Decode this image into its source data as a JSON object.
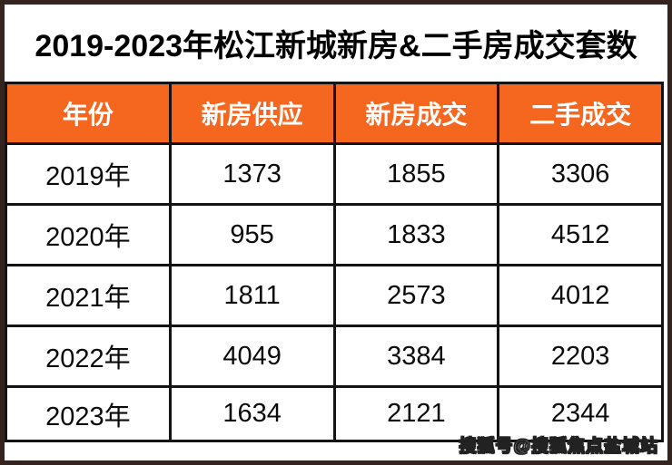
{
  "title": "2019-2023年松江新城新房&二手房成交套数",
  "watermark": "搜狐号@搜狐焦点盐城站",
  "colors": {
    "accent_orange": "#f5661e",
    "table_line": "#141414",
    "outer_frame": "#33241f",
    "header_text": "#ffffff",
    "body_text": "#0b0b0b"
  },
  "chart_data": {
    "type": "table",
    "title": "2019-2023年松江新城新房&二手房成交套数",
    "headers": [
      "年份",
      "新房供应",
      "新房成交",
      "二手成交"
    ],
    "categories": [
      "2019年",
      "2020年",
      "2021年",
      "2022年",
      "2023年"
    ],
    "series": [
      {
        "name": "新房供应",
        "values": [
          1373,
          955,
          1811,
          4049,
          1634
        ]
      },
      {
        "name": "新房成交",
        "values": [
          1855,
          1833,
          2573,
          3384,
          2121
        ]
      },
      {
        "name": "二手成交",
        "values": [
          3306,
          4512,
          4012,
          2203,
          2344
        ]
      }
    ],
    "rows": [
      [
        "2019年",
        "1373",
        "1855",
        "3306"
      ],
      [
        "2020年",
        "955",
        "1833",
        "4512"
      ],
      [
        "2021年",
        "1811",
        "2573",
        "4012"
      ],
      [
        "2022年",
        "4049",
        "3384",
        "2203"
      ],
      [
        "2023年",
        "1634",
        "2121",
        "2344"
      ]
    ]
  }
}
